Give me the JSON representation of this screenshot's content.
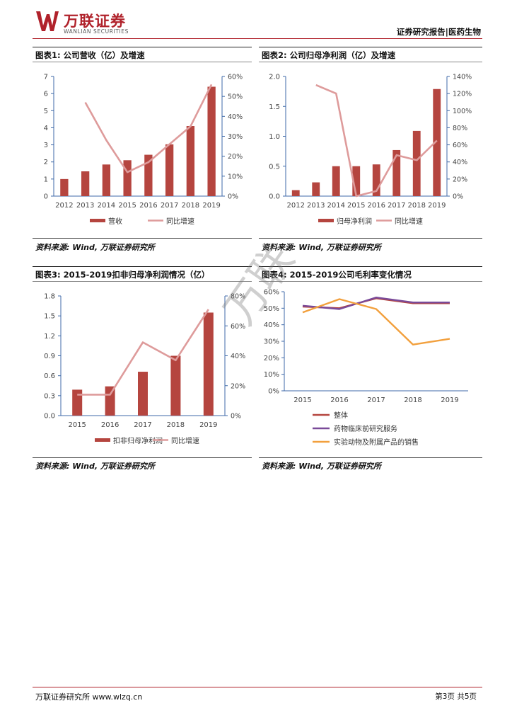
{
  "header": {
    "brand_cn": "万联证券",
    "brand_en": "WANLIAN SECURITIES",
    "doc_type": "证券研究报告|医药生物"
  },
  "watermark_text": "万联",
  "colors": {
    "bar": "#b5453f",
    "line": "#de9b9b",
    "accent": "#b0222b",
    "purple": "#7a4a99",
    "orange": "#f2a03d"
  },
  "footer": {
    "left": "万联证券研究所 www.wlzq.cn",
    "right": "第3页 共5页"
  },
  "charts": [
    {
      "title": "图表1: 公司营收（亿）及增速",
      "source": "资料来源: Wind, 万联证券研究所",
      "legend": [
        "营收",
        "同比增速"
      ]
    },
    {
      "title": "图表2: 公司归母净利润（亿）及增速",
      "source": "资料来源: Wind, 万联证券研究所",
      "legend": [
        "归母净利润",
        "同比增速"
      ]
    },
    {
      "title": "图表3: 2015-2019扣非归母净利润情况（亿）",
      "source": "资料来源: Wind, 万联证券研究所",
      "legend": [
        "扣非归母净利润",
        "同比增速"
      ]
    },
    {
      "title": "图表4: 2015-2019公司毛利率变化情况",
      "source": "资料来源: Wind, 万联证券研究所",
      "legend": [
        "整体",
        "药物临床前研究服务",
        "实验动物及附属产品的销售"
      ]
    }
  ],
  "chart_data": [
    {
      "type": "bar+line",
      "title": "公司营收（亿）及增速",
      "categories": [
        "2012",
        "2013",
        "2014",
        "2015",
        "2016",
        "2017",
        "2018",
        "2019"
      ],
      "series": [
        {
          "name": "营收",
          "axis": "left",
          "kind": "bar",
          "values": [
            1.0,
            1.45,
            1.85,
            2.1,
            2.42,
            3.03,
            4.1,
            6.4
          ]
        },
        {
          "name": "同比增速",
          "axis": "right",
          "kind": "line",
          "values": [
            null,
            0.47,
            0.28,
            0.12,
            0.17,
            0.26,
            0.35,
            0.56
          ]
        }
      ],
      "left_ticks": [
        "0",
        "1",
        "2",
        "3",
        "4",
        "5",
        "6",
        "7"
      ],
      "right_ticks": [
        "0%",
        "10%",
        "20%",
        "30%",
        "40%",
        "50%",
        "60%"
      ],
      "ylim_left": [
        0,
        7
      ],
      "ylim_right": [
        0,
        0.6
      ]
    },
    {
      "type": "bar+line",
      "title": "公司归母净利润（亿）及增速",
      "categories": [
        "2012",
        "2013",
        "2014",
        "2015",
        "2016",
        "2017",
        "2018",
        "2019"
      ],
      "series": [
        {
          "name": "归母净利润",
          "axis": "left",
          "kind": "bar",
          "values": [
            0.1,
            0.23,
            0.5,
            0.5,
            0.53,
            0.77,
            1.09,
            1.79
          ]
        },
        {
          "name": "同比增速",
          "axis": "right",
          "kind": "line",
          "values": [
            null,
            1.3,
            1.2,
            0.0,
            0.06,
            0.48,
            0.42,
            0.65
          ]
        }
      ],
      "left_ticks": [
        "0.0",
        "0.5",
        "1.0",
        "1.5",
        "2.0"
      ],
      "right_ticks": [
        "0%",
        "20%",
        "40%",
        "60%",
        "80%",
        "100%",
        "120%",
        "140%"
      ],
      "ylim_left": [
        0,
        2.0
      ],
      "ylim_right": [
        0,
        1.4
      ]
    },
    {
      "type": "bar+line",
      "title": "2015-2019扣非归母净利润情况（亿）",
      "categories": [
        "2015",
        "2016",
        "2017",
        "2018",
        "2019"
      ],
      "series": [
        {
          "name": "扣非归母净利润",
          "axis": "left",
          "kind": "bar",
          "values": [
            0.39,
            0.44,
            0.66,
            0.9,
            1.55
          ]
        },
        {
          "name": "同比增速",
          "axis": "right",
          "kind": "line",
          "values": [
            0.14,
            0.14,
            0.49,
            0.37,
            0.71
          ]
        }
      ],
      "left_ticks": [
        "0.0",
        "0.3",
        "0.6",
        "0.9",
        "1.2",
        "1.5",
        "1.8"
      ],
      "right_ticks": [
        "0%",
        "20%",
        "40%",
        "60%",
        "80%"
      ],
      "ylim_left": [
        0,
        1.8
      ],
      "ylim_right": [
        0,
        0.8
      ]
    },
    {
      "type": "line",
      "title": "2015-2019公司毛利率变化情况",
      "categories": [
        "2015",
        "2016",
        "2017",
        "2018",
        "2019"
      ],
      "series": [
        {
          "name": "整体",
          "values": [
            0.51,
            0.5,
            0.56,
            0.53,
            0.53
          ]
        },
        {
          "name": "药物临床前研究服务",
          "values": [
            0.515,
            0.495,
            0.565,
            0.535,
            0.535
          ]
        },
        {
          "name": "实验动物及附属产品的销售",
          "values": [
            0.475,
            0.555,
            0.495,
            0.28,
            0.315
          ]
        }
      ],
      "left_ticks": [
        "0%",
        "10%",
        "20%",
        "30%",
        "40%",
        "50%",
        "60%"
      ],
      "ylim": [
        0,
        0.6
      ]
    }
  ]
}
